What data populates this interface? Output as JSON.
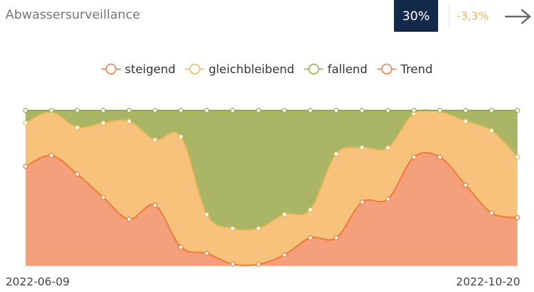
{
  "kpi": {
    "value": "30%",
    "change": "-3,3%"
  },
  "chart_data": {
    "type": "stacked-area",
    "title": "Abwassersurveillance",
    "categories": [
      "2022-06-09",
      null,
      null,
      null,
      null,
      null,
      null,
      null,
      null,
      null,
      null,
      null,
      null,
      null,
      null,
      null,
      null,
      null,
      null,
      "2022-10-20"
    ],
    "ylim": [
      0,
      100
    ],
    "legend": "top",
    "series": [
      {
        "name": "steigend",
        "color": "#f07838",
        "fill": "#f5a07c",
        "values": [
          64,
          71,
          59,
          44,
          30,
          39,
          12,
          8,
          1,
          1,
          7,
          18,
          18,
          41,
          43,
          70,
          70,
          52,
          34,
          31
        ]
      },
      {
        "name": "gleichbleibend",
        "color": "#f2b558",
        "fill": "#f6c27c",
        "values": [
          28,
          28,
          30,
          48,
          63,
          42,
          71,
          25,
          23,
          23,
          26,
          18,
          54,
          35,
          33,
          28,
          29,
          41,
          53,
          39
        ]
      },
      {
        "name": "fallend",
        "color": "#8fae3a",
        "fill": "#aab566",
        "values": [
          8,
          1,
          11,
          8,
          7,
          19,
          17,
          67,
          76,
          76,
          67,
          64,
          28,
          24,
          24,
          2,
          1,
          7,
          13,
          30
        ]
      },
      {
        "name": "Trend",
        "color": "#f07838",
        "values": [
          null,
          null,
          null,
          null,
          null,
          null,
          null,
          null,
          null,
          null,
          null,
          null,
          null,
          null,
          null,
          null,
          null,
          null,
          null,
          null
        ]
      }
    ]
  }
}
